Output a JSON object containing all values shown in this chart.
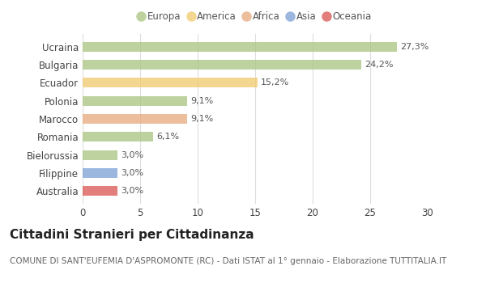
{
  "categories": [
    "Ucraina",
    "Bulgaria",
    "Ecuador",
    "Polonia",
    "Marocco",
    "Romania",
    "Bielorussia",
    "Filippine",
    "Australia"
  ],
  "values": [
    27.3,
    24.2,
    15.2,
    9.1,
    9.1,
    6.1,
    3.0,
    3.0,
    3.0
  ],
  "labels": [
    "27,3%",
    "24,2%",
    "15,2%",
    "9,1%",
    "9,1%",
    "6,1%",
    "3,0%",
    "3,0%",
    "3,0%"
  ],
  "bar_colors": [
    "#a8c47f",
    "#a8c47f",
    "#f0c96a",
    "#a8c47f",
    "#e8a87c",
    "#a8c47f",
    "#a8c47f",
    "#7b9fd4",
    "#d9534f"
  ],
  "legend_labels": [
    "Europa",
    "America",
    "Africa",
    "Asia",
    "Oceania"
  ],
  "legend_colors": [
    "#a8c47f",
    "#f0c96a",
    "#e8a87c",
    "#7b9fd4",
    "#d9534f"
  ],
  "xlim": [
    0,
    30
  ],
  "xticks": [
    0,
    5,
    10,
    15,
    20,
    25,
    30
  ],
  "title": "Cittadini Stranieri per Cittadinanza",
  "subtitle": "COMUNE DI SANT'EUFEMIA D'ASPROMONTE (RC) - Dati ISTAT al 1° gennaio - Elaborazione TUTTITALIA.IT",
  "background_color": "#ffffff",
  "grid_color": "#dddddd",
  "bar_alpha": 0.75,
  "title_fontsize": 11,
  "subtitle_fontsize": 7.5,
  "label_fontsize": 8,
  "tick_fontsize": 8.5,
  "legend_fontsize": 8.5
}
